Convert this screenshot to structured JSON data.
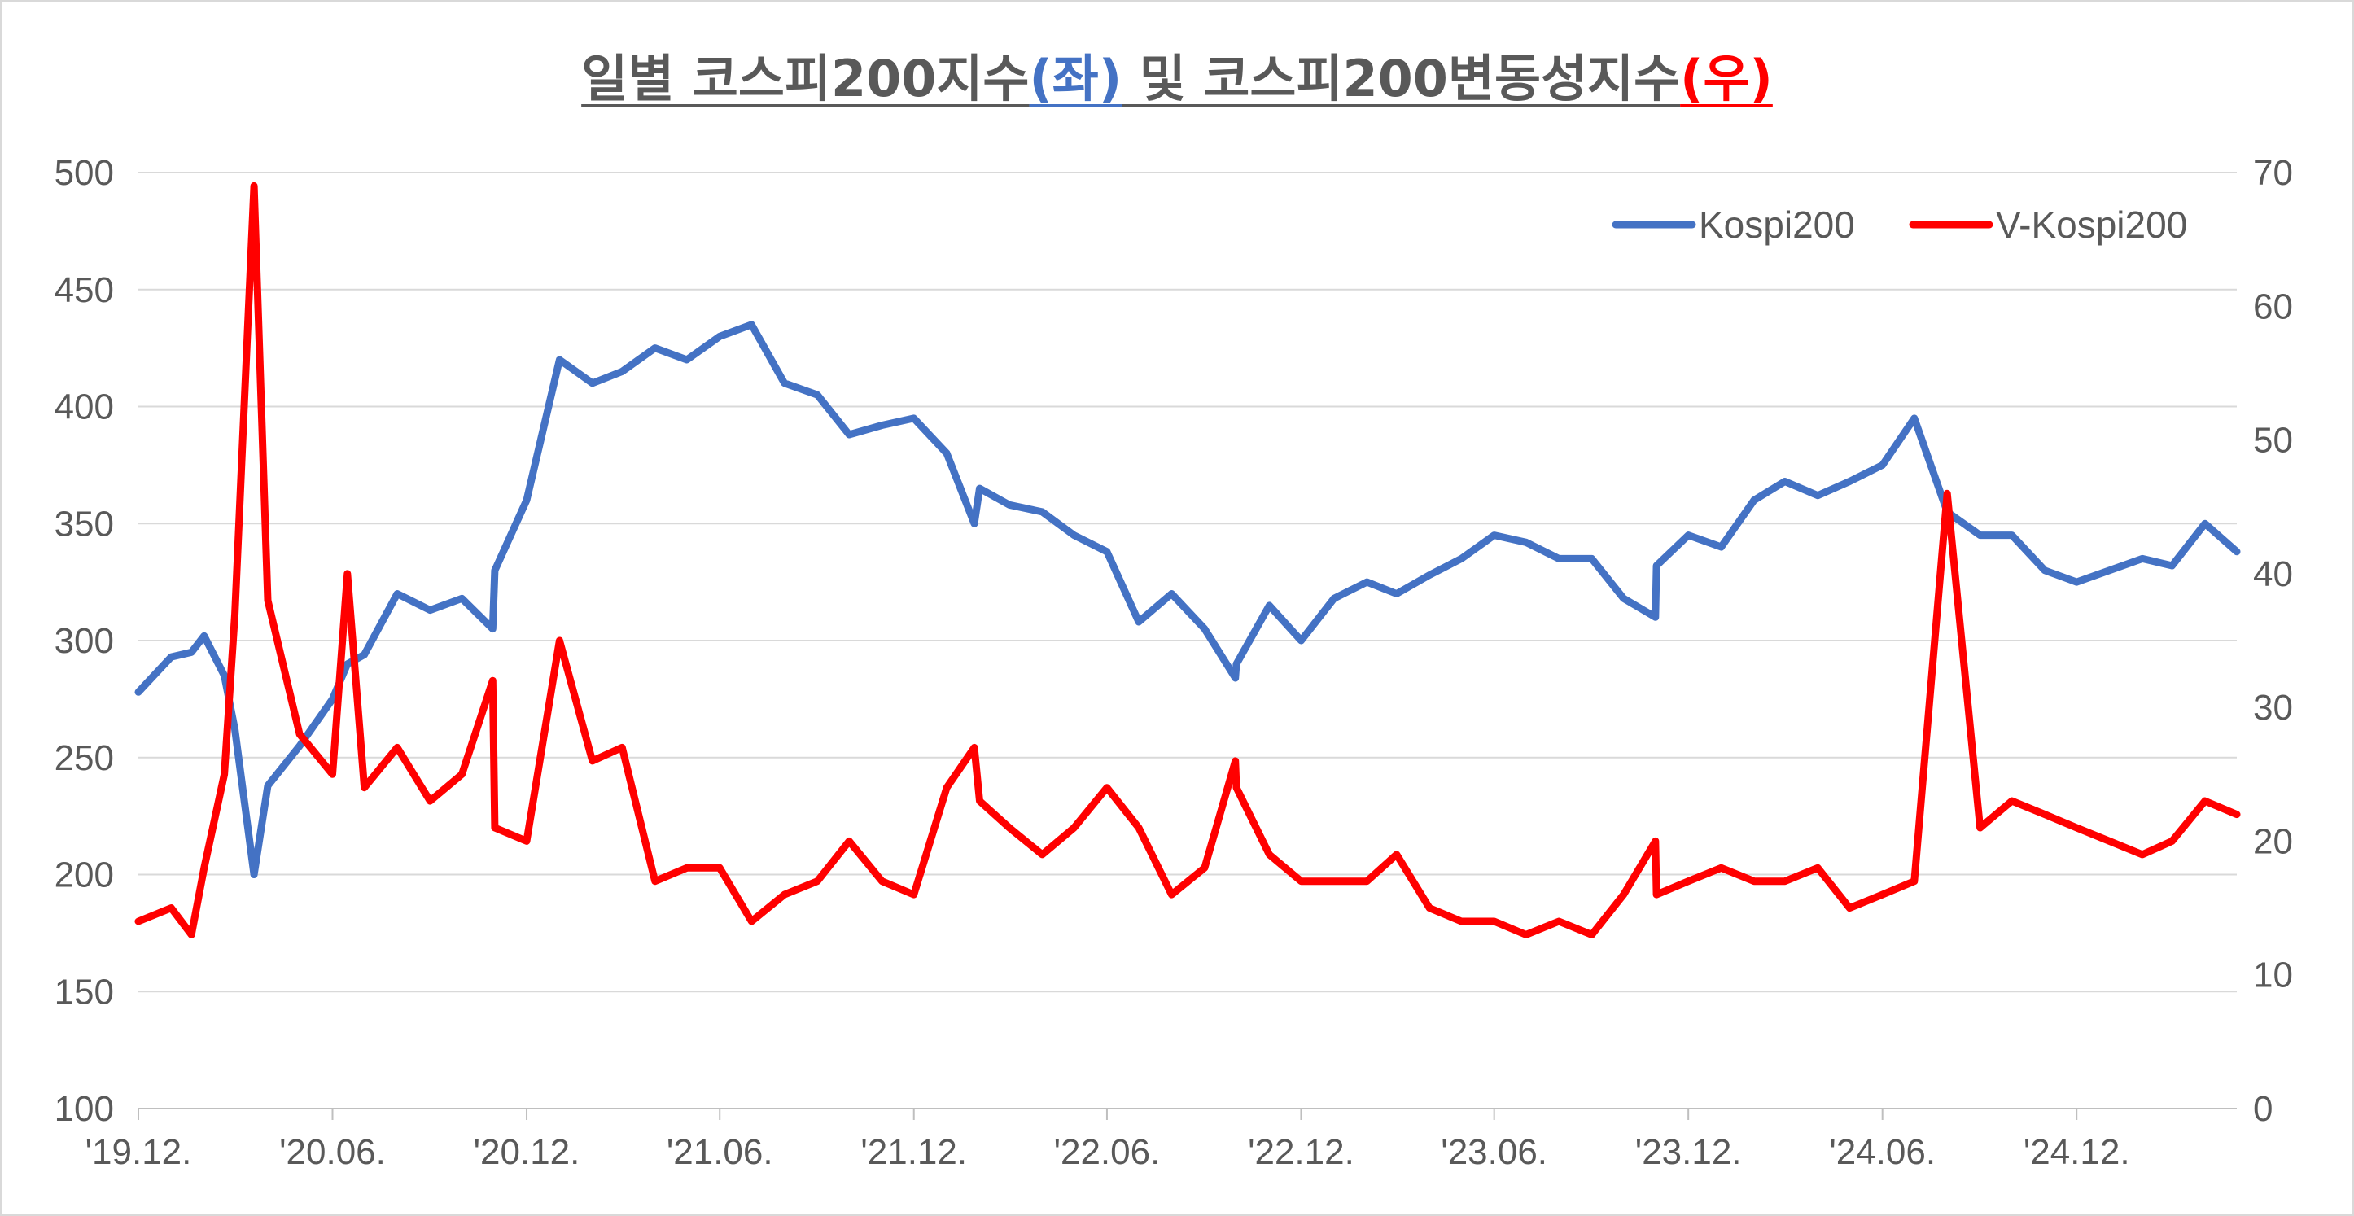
{
  "title": {
    "part1": "일별 코스피200지수",
    "part2": "(좌)",
    "part3": " 및 코스피200변동성지수",
    "part4": "(우)",
    "color_left": "#4472c4",
    "color_right": "#ff0000"
  },
  "chart_data": {
    "type": "line",
    "x_ticks": [
      "'19.12.",
      "'20.06.",
      "'20.12.",
      "'21.06.",
      "'21.12.",
      "'22.06.",
      "'22.12.",
      "'23.06.",
      "'23.12.",
      "'24.06.",
      "'24.12."
    ],
    "y_left_ticks": [
      "500",
      "450",
      "400",
      "350",
      "300",
      "250",
      "200",
      "150",
      "100"
    ],
    "y_right_ticks": [
      "70",
      "60",
      "50",
      "40",
      "30",
      "20",
      "10",
      "0"
    ],
    "ylim_left": [
      100,
      500
    ],
    "ylim_right": [
      0,
      70
    ],
    "xlim": [
      "2019-12",
      "2025-05"
    ],
    "grid": true,
    "legend_position": "top-right",
    "series": [
      {
        "name": "Kospi200",
        "axis": "left",
        "color": "#4472c4",
        "points": [
          [
            "2019-12",
            278
          ],
          [
            "2020-01",
            293
          ],
          [
            "2020-01-20",
            295
          ],
          [
            "2020-02",
            302
          ],
          [
            "2020-02-20",
            285
          ],
          [
            "2020-03",
            262
          ],
          [
            "2020-03-19",
            200
          ],
          [
            "2020-04",
            238
          ],
          [
            "2020-05",
            255
          ],
          [
            "2020-06",
            275
          ],
          [
            "2020-06-15",
            290
          ],
          [
            "2020-07",
            294
          ],
          [
            "2020-08",
            320
          ],
          [
            "2020-09",
            313
          ],
          [
            "2020-10",
            318
          ],
          [
            "2020-10-30",
            305
          ],
          [
            "2020-11",
            330
          ],
          [
            "2020-12",
            360
          ],
          [
            "2021-01",
            420
          ],
          [
            "2021-02",
            410
          ],
          [
            "2021-03",
            415
          ],
          [
            "2021-04",
            425
          ],
          [
            "2021-05",
            420
          ],
          [
            "2021-06",
            430
          ],
          [
            "2021-07",
            435
          ],
          [
            "2021-08",
            410
          ],
          [
            "2021-09",
            405
          ],
          [
            "2021-10",
            388
          ],
          [
            "2021-11",
            392
          ],
          [
            "2021-12",
            395
          ],
          [
            "2022-01",
            380
          ],
          [
            "2022-01-27",
            350
          ],
          [
            "2022-02",
            365
          ],
          [
            "2022-03",
            358
          ],
          [
            "2022-04",
            355
          ],
          [
            "2022-05",
            345
          ],
          [
            "2022-06",
            338
          ],
          [
            "2022-07",
            308
          ],
          [
            "2022-08",
            320
          ],
          [
            "2022-09",
            305
          ],
          [
            "2022-09-30",
            284
          ],
          [
            "2022-10",
            290
          ],
          [
            "2022-11",
            315
          ],
          [
            "2022-12",
            300
          ],
          [
            "2023-01",
            318
          ],
          [
            "2023-02",
            325
          ],
          [
            "2023-03",
            320
          ],
          [
            "2023-04",
            328
          ],
          [
            "2023-05",
            335
          ],
          [
            "2023-06",
            345
          ],
          [
            "2023-07",
            342
          ],
          [
            "2023-08",
            335
          ],
          [
            "2023-09",
            335
          ],
          [
            "2023-10",
            318
          ],
          [
            "2023-10-31",
            310
          ],
          [
            "2023-11",
            332
          ],
          [
            "2023-12",
            345
          ],
          [
            "2024-01",
            340
          ],
          [
            "2024-02",
            360
          ],
          [
            "2024-03",
            368
          ],
          [
            "2024-04",
            362
          ],
          [
            "2024-05",
            368
          ],
          [
            "2024-06",
            375
          ],
          [
            "2024-07",
            395
          ],
          [
            "2024-08",
            355
          ],
          [
            "2024-09",
            345
          ],
          [
            "2024-10",
            345
          ],
          [
            "2024-11",
            330
          ],
          [
            "2024-12",
            325
          ],
          [
            "2025-01",
            330
          ],
          [
            "2025-02",
            335
          ],
          [
            "2025-03",
            332
          ],
          [
            "2025-04",
            350
          ],
          [
            "2025-05",
            338
          ]
        ]
      },
      {
        "name": "V-Kospi200",
        "axis": "right",
        "color": "#ff0000",
        "points": [
          [
            "2019-12",
            14
          ],
          [
            "2020-01",
            15
          ],
          [
            "2020-01-20",
            13
          ],
          [
            "2020-02",
            18
          ],
          [
            "2020-02-20",
            25
          ],
          [
            "2020-03",
            37
          ],
          [
            "2020-03-19",
            69
          ],
          [
            "2020-04",
            38
          ],
          [
            "2020-05",
            28
          ],
          [
            "2020-06",
            25
          ],
          [
            "2020-06-15",
            40
          ],
          [
            "2020-07",
            24
          ],
          [
            "2020-08",
            27
          ],
          [
            "2020-09",
            23
          ],
          [
            "2020-10",
            25
          ],
          [
            "2020-10-30",
            32
          ],
          [
            "2020-11",
            21
          ],
          [
            "2020-12",
            20
          ],
          [
            "2021-01",
            35
          ],
          [
            "2021-02",
            26
          ],
          [
            "2021-03",
            27
          ],
          [
            "2021-04",
            17
          ],
          [
            "2021-05",
            18
          ],
          [
            "2021-06",
            18
          ],
          [
            "2021-07",
            14
          ],
          [
            "2021-08",
            16
          ],
          [
            "2021-09",
            17
          ],
          [
            "2021-10",
            20
          ],
          [
            "2021-11",
            17
          ],
          [
            "2021-12",
            16
          ],
          [
            "2022-01",
            24
          ],
          [
            "2022-01-27",
            27
          ],
          [
            "2022-02",
            23
          ],
          [
            "2022-03",
            21
          ],
          [
            "2022-04",
            19
          ],
          [
            "2022-05",
            21
          ],
          [
            "2022-06",
            24
          ],
          [
            "2022-07",
            21
          ],
          [
            "2022-08",
            16
          ],
          [
            "2022-09",
            18
          ],
          [
            "2022-09-30",
            26
          ],
          [
            "2022-10",
            24
          ],
          [
            "2022-11",
            19
          ],
          [
            "2022-12",
            17
          ],
          [
            "2023-01",
            17
          ],
          [
            "2023-02",
            17
          ],
          [
            "2023-03",
            19
          ],
          [
            "2023-04",
            15
          ],
          [
            "2023-05",
            14
          ],
          [
            "2023-06",
            14
          ],
          [
            "2023-07",
            13
          ],
          [
            "2023-08",
            14
          ],
          [
            "2023-09",
            13
          ],
          [
            "2023-10",
            16
          ],
          [
            "2023-10-31",
            20
          ],
          [
            "2023-11",
            16
          ],
          [
            "2023-12",
            17
          ],
          [
            "2024-01",
            18
          ],
          [
            "2024-02",
            17
          ],
          [
            "2024-03",
            17
          ],
          [
            "2024-04",
            18
          ],
          [
            "2024-05",
            15
          ],
          [
            "2024-06",
            16
          ],
          [
            "2024-07",
            17
          ],
          [
            "2024-08",
            46
          ],
          [
            "2024-09",
            21
          ],
          [
            "2024-10",
            23
          ],
          [
            "2024-11",
            22
          ],
          [
            "2024-12",
            21
          ],
          [
            "2025-01",
            20
          ],
          [
            "2025-02",
            19
          ],
          [
            "2025-03",
            20
          ],
          [
            "2025-04",
            23
          ],
          [
            "2025-05",
            22
          ]
        ]
      }
    ]
  }
}
